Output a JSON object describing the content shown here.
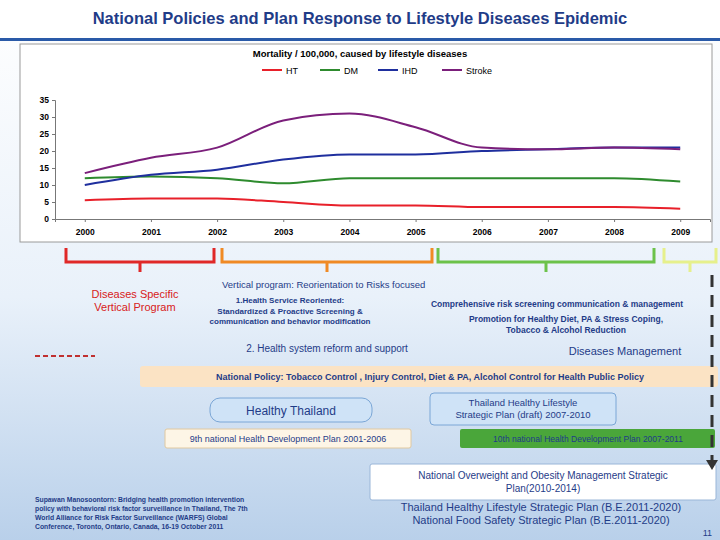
{
  "chart_data": {
    "type": "line",
    "title": "Mortality / 100,000, caused by lifestyle diseases",
    "categories": [
      "2000",
      "2001",
      "2002",
      "2003",
      "2004",
      "2005",
      "2006",
      "2007",
      "2008",
      "2009"
    ],
    "series": [
      {
        "name": "HT",
        "color": "#e8202a",
        "values": [
          5.5,
          6,
          6,
          5,
          4,
          4,
          3.5,
          3.5,
          3.5,
          3
        ]
      },
      {
        "name": "DM",
        "color": "#2e8b2e",
        "values": [
          12,
          12.5,
          12,
          10.5,
          12,
          12,
          12,
          12,
          12,
          11
        ]
      },
      {
        "name": "IHD",
        "color": "#1f2f9e",
        "values": [
          10,
          13,
          14.5,
          17.5,
          19,
          19,
          20,
          20.5,
          21,
          21
        ]
      },
      {
        "name": "Stroke",
        "color": "#7b1f7b",
        "values": [
          13.5,
          18,
          21,
          29,
          31,
          27,
          21,
          20.5,
          21,
          20.5
        ]
      }
    ],
    "ylim": [
      0,
      35
    ],
    "yticks": [
      0,
      5,
      10,
      15,
      20,
      25,
      30,
      35
    ],
    "grid": false,
    "legend": "top"
  },
  "slide": {
    "title": "National Policies and Plan Response to Lifestyle Diseases Epidemic",
    "left_program": [
      "Diseases Specific",
      "Vertical Program"
    ],
    "vertical_program": [
      "Vertical program: Reorientation to Risks focused"
    ],
    "health_service": [
      "1.Health Service Reoriented:",
      "Standardized & Proactive Screening &",
      "communication and behavior modification"
    ],
    "comprehensive": [
      "Comprehensive risk screening communication & management"
    ],
    "promotion": [
      "Promotion for Healthy Diet, PA & Stress Coping,",
      "Tobacco & Alcohol Reduction"
    ],
    "reform": [
      "2. Health system reform  and  support"
    ],
    "disease_mgmt": [
      "Diseases Management"
    ],
    "national_policy": [
      "National Policy: Tobacco Control , Injury Control, Diet & PA, Alcohol Control for Health Public Policy"
    ],
    "healthy_thailand": [
      "Healthy Thailand"
    ],
    "lifestyle_draft": [
      "Thailand  Healthy Lifestyle",
      "Strategic Plan (draft) 2007-2010"
    ],
    "plan9": [
      "9th national Health Development Plan 2001-2006"
    ],
    "plan10": [
      "10th national Health Development Plan  2007-2011"
    ],
    "obesity": [
      "National Overweight and Obesity  Management Strategic",
      "Plan(2010-2014)"
    ],
    "lifestyle_2011": [
      "Thailand Healthy Lifestyle Strategic Plan (B.E.2011-2020)"
    ],
    "food_safety": [
      "National Food Safety Strategic Plan (B.E.2011-2020)"
    ],
    "citation": [
      "Supawan Manosoontorn: Bridging health promotion intervention",
      "policy with behavioral risk factor surveillance in Thailand, The 7th",
      "World Alliance for Risk Factor Surveillance (WARFS) Global",
      "Conference, Toronto, Ontario, Canada, 16-19 October 2011"
    ],
    "page": [
      "11"
    ]
  }
}
